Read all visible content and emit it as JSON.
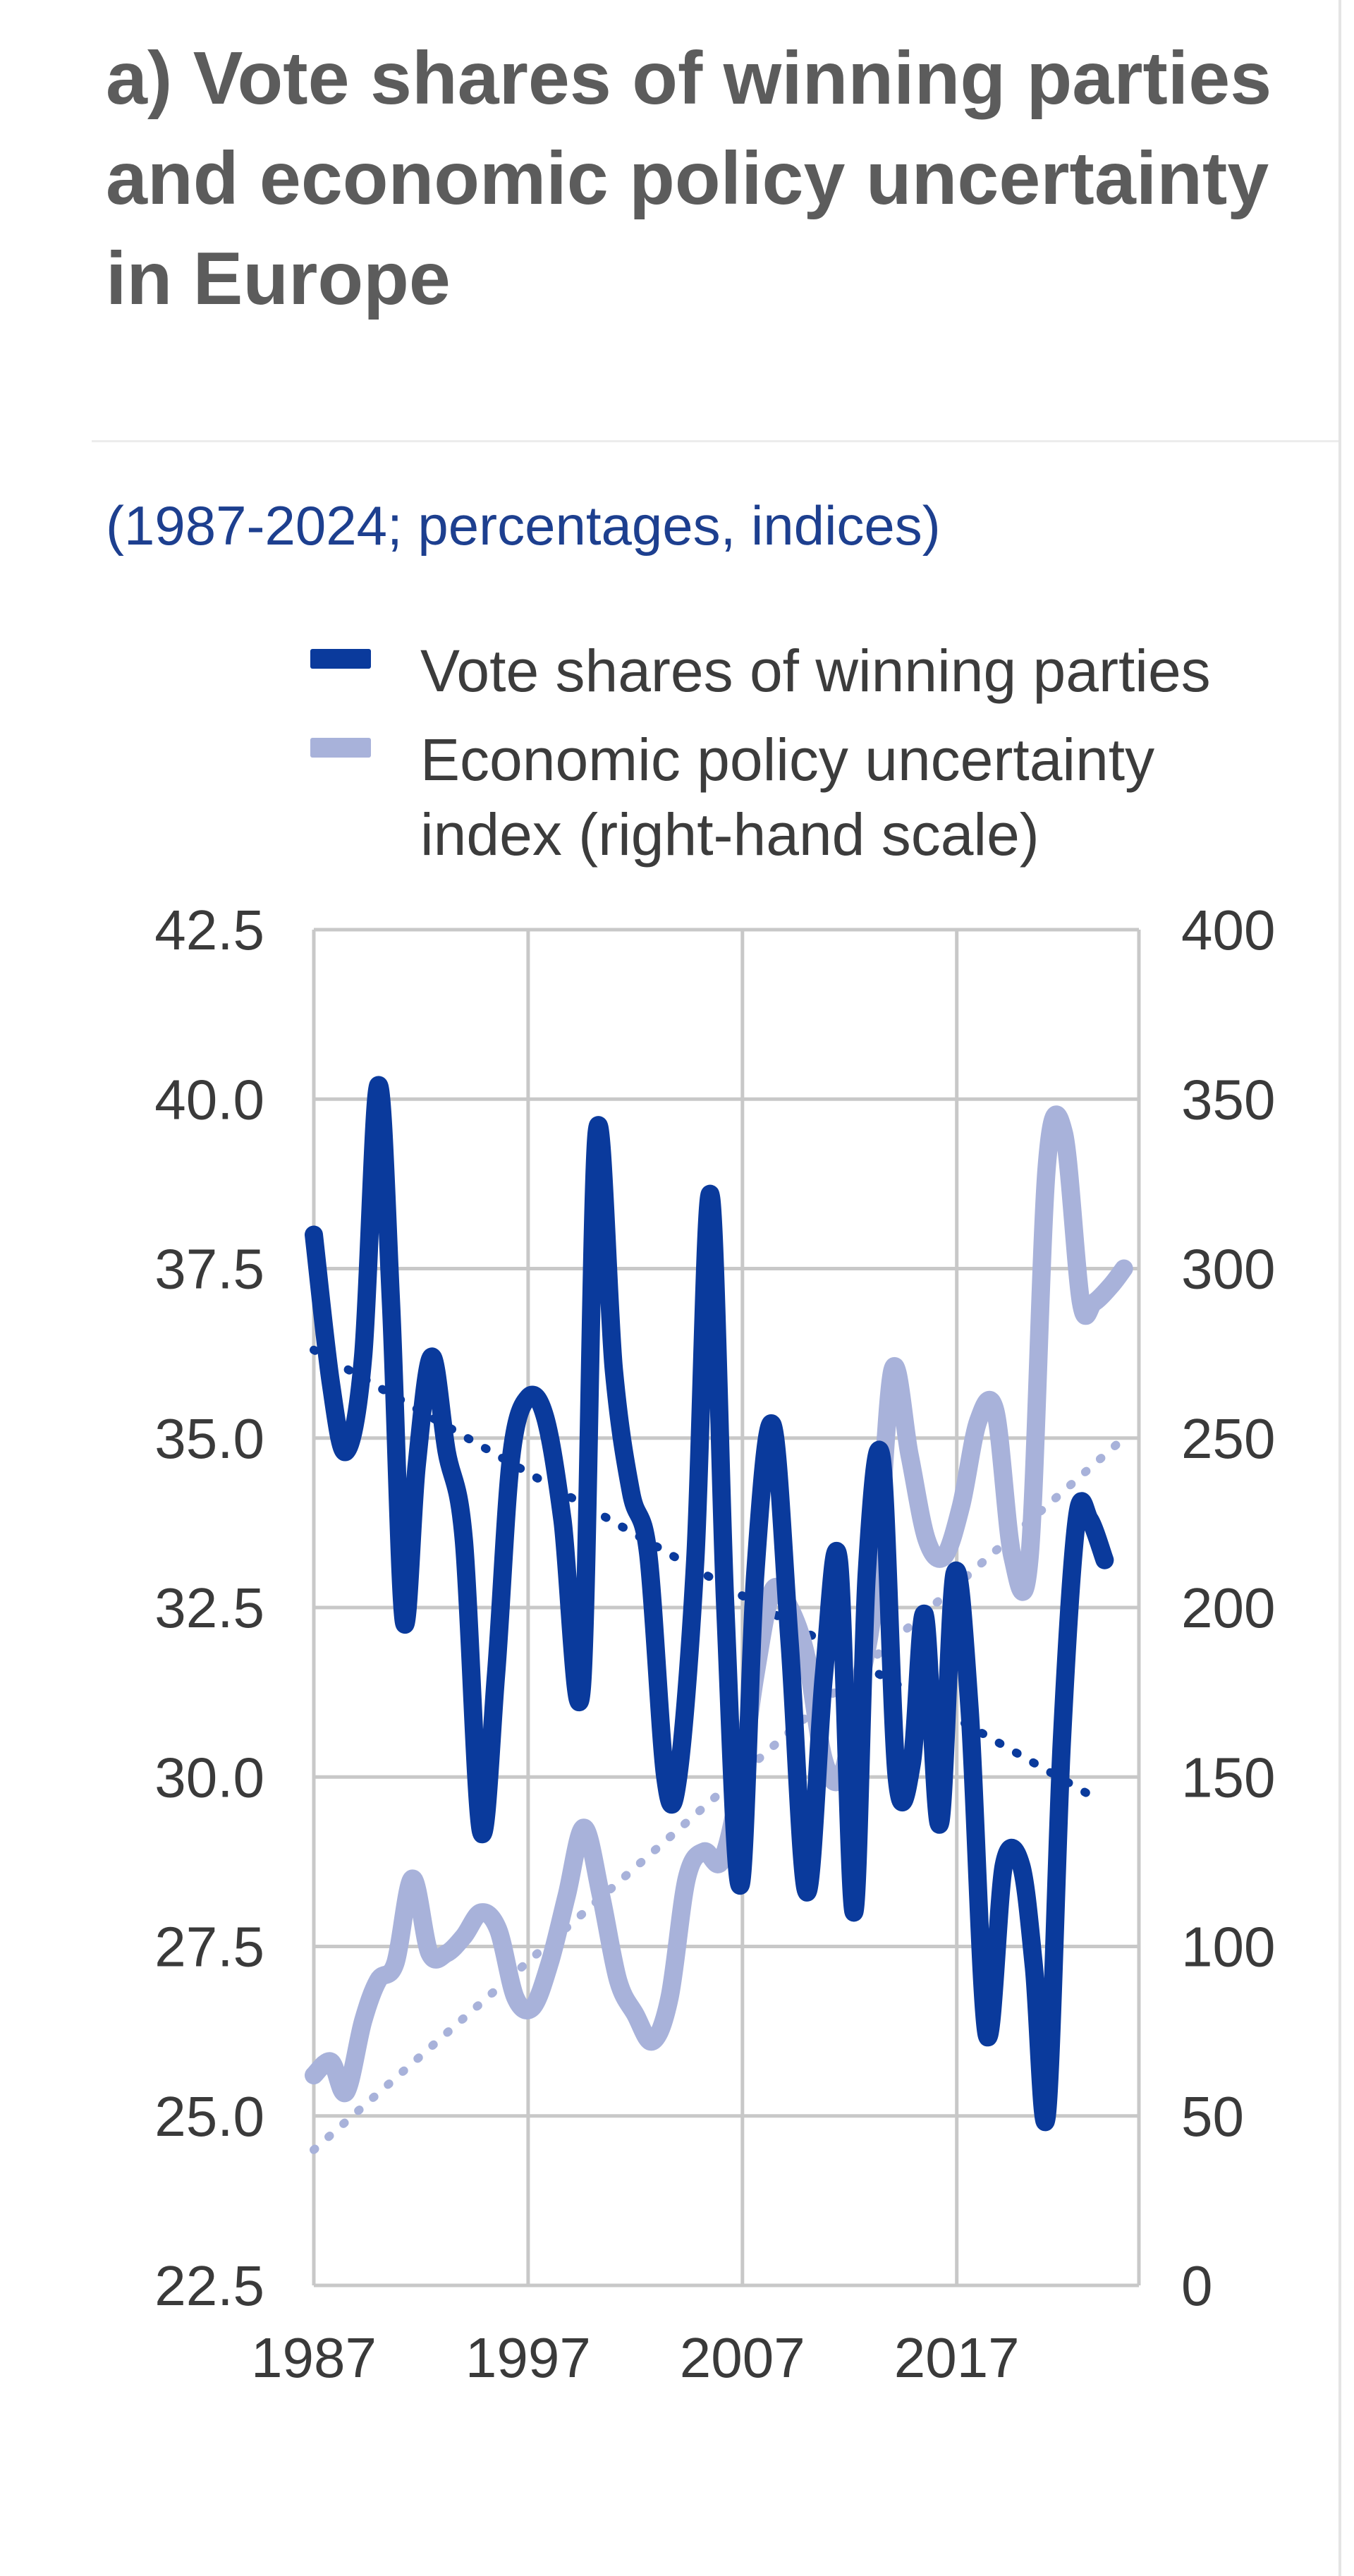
{
  "title": "a) Vote shares of winning parties and economic policy uncertainty in Europe",
  "subtitle": "(1987-2024; percentages, indices)",
  "colors": {
    "vote_series": "#0a3a9c",
    "epu_series": "#a8b2da",
    "grid": "#c8c8c8",
    "axis_text": "#3a3a3a",
    "title": "#5c5c5c",
    "subtitle": "#1d3f8f"
  },
  "chart_data": {
    "type": "line",
    "title": "a) Vote shares of winning parties and economic policy uncertainty in Europe",
    "subtitle": "(1987-2024; percentages, indices)",
    "x_ticks": [
      1987,
      1997,
      2007,
      2017
    ],
    "xlim": [
      1987,
      2025.5
    ],
    "y_left": {
      "range": [
        22.5,
        42.5
      ],
      "ticks": [
        "22.5",
        "25.0",
        "27.5",
        "30.0",
        "32.5",
        "35.0",
        "37.5",
        "40.0",
        "42.5"
      ]
    },
    "y_right": {
      "range": [
        0,
        400
      ],
      "ticks": [
        "0",
        "50",
        "100",
        "150",
        "200",
        "250",
        "300",
        "350",
        "400"
      ]
    },
    "grid": true,
    "legend_position": "top",
    "series": [
      {
        "name": "Vote shares of winning parties",
        "axis": "left",
        "style": "solid",
        "x": [
          1987,
          1987.8,
          1988.5,
          1989.3,
          1990,
          1990.6,
          1991.2,
          1991.8,
          1992.5,
          1993.2,
          1994,
          1994.8,
          1995.5,
          1996.2,
          1997,
          1997.8,
          1998.6,
          1999.5,
          2000.2,
          2001,
          2001.8,
          2002.6,
          2003.4,
          2004,
          2004.8,
          2005.5,
          2006.2,
          2006.9,
          2007.6,
          2008.4,
          2009.2,
          2010,
          2010.8,
          2011.5,
          2012.2,
          2012.8,
          2013.5,
          2014.2,
          2014.9,
          2015.5,
          2016.2,
          2016.9,
          2017.6,
          2018.4,
          2019.2,
          2020,
          2020.6,
          2021.2,
          2021.9,
          2022.6,
          2023.2,
          2023.9
        ],
        "y": [
          38.0,
          35.8,
          34.8,
          36.2,
          40.2,
          37.0,
          32.3,
          34.6,
          36.2,
          34.8,
          33.5,
          29.2,
          31.5,
          34.7,
          35.6,
          35.3,
          33.8,
          31.3,
          39.5,
          36.0,
          34.2,
          33.3,
          30.0,
          30.0,
          33.2,
          38.6,
          32.5,
          28.4,
          33.0,
          35.2,
          32.0,
          28.3,
          31.5,
          33.2,
          28.0,
          33.0,
          34.7,
          30.0,
          30.2,
          32.4,
          29.3,
          33.0,
          31.0,
          26.2,
          28.7,
          28.7,
          27.2,
          25.0,
          30.5,
          33.8,
          33.8,
          33.2
        ]
      },
      {
        "name": "Economic policy uncertainty index (right-hand scale)",
        "axis": "right",
        "style": "solid",
        "x": [
          1987,
          1987.8,
          1988.5,
          1989.3,
          1990,
          1990.8,
          1991.6,
          1992.4,
          1993.2,
          1994,
          1994.8,
          1995.6,
          1996.4,
          1997.2,
          1998,
          1998.8,
          1999.6,
          2000.4,
          2001.2,
          2002,
          2002.8,
          2003.6,
          2004.4,
          2005.2,
          2006,
          2006.8,
          2007.6,
          2008.4,
          2009.2,
          2010,
          2010.8,
          2011.6,
          2012.4,
          2013.2,
          2014,
          2014.8,
          2015.6,
          2016.4,
          2017.2,
          2018,
          2018.8,
          2019.6,
          2020.4,
          2021.2,
          2022,
          2022.8,
          2023.4,
          2024.2,
          2024.8
        ],
        "y": [
          62,
          66,
          57,
          78,
          90,
          95,
          120,
          98,
          98,
          103,
          110,
          105,
          85,
          82,
          95,
          115,
          135,
          115,
          90,
          80,
          72,
          85,
          120,
          128,
          125,
          145,
          180,
          205,
          200,
          185,
          155,
          150,
          175,
          205,
          270,
          245,
          220,
          215,
          230,
          255,
          258,
          215,
          215,
          330,
          340,
          290,
          290,
          295,
          300
        ]
      },
      {
        "name": "",
        "axis": "left",
        "style": "dotted",
        "x": [
          1987,
          2023.4
        ],
        "y": [
          36.3,
          29.7
        ]
      },
      {
        "name": "",
        "axis": "right",
        "style": "dotted",
        "x": [
          1987,
          2024.8
        ],
        "y": [
          40,
          250
        ]
      }
    ]
  }
}
